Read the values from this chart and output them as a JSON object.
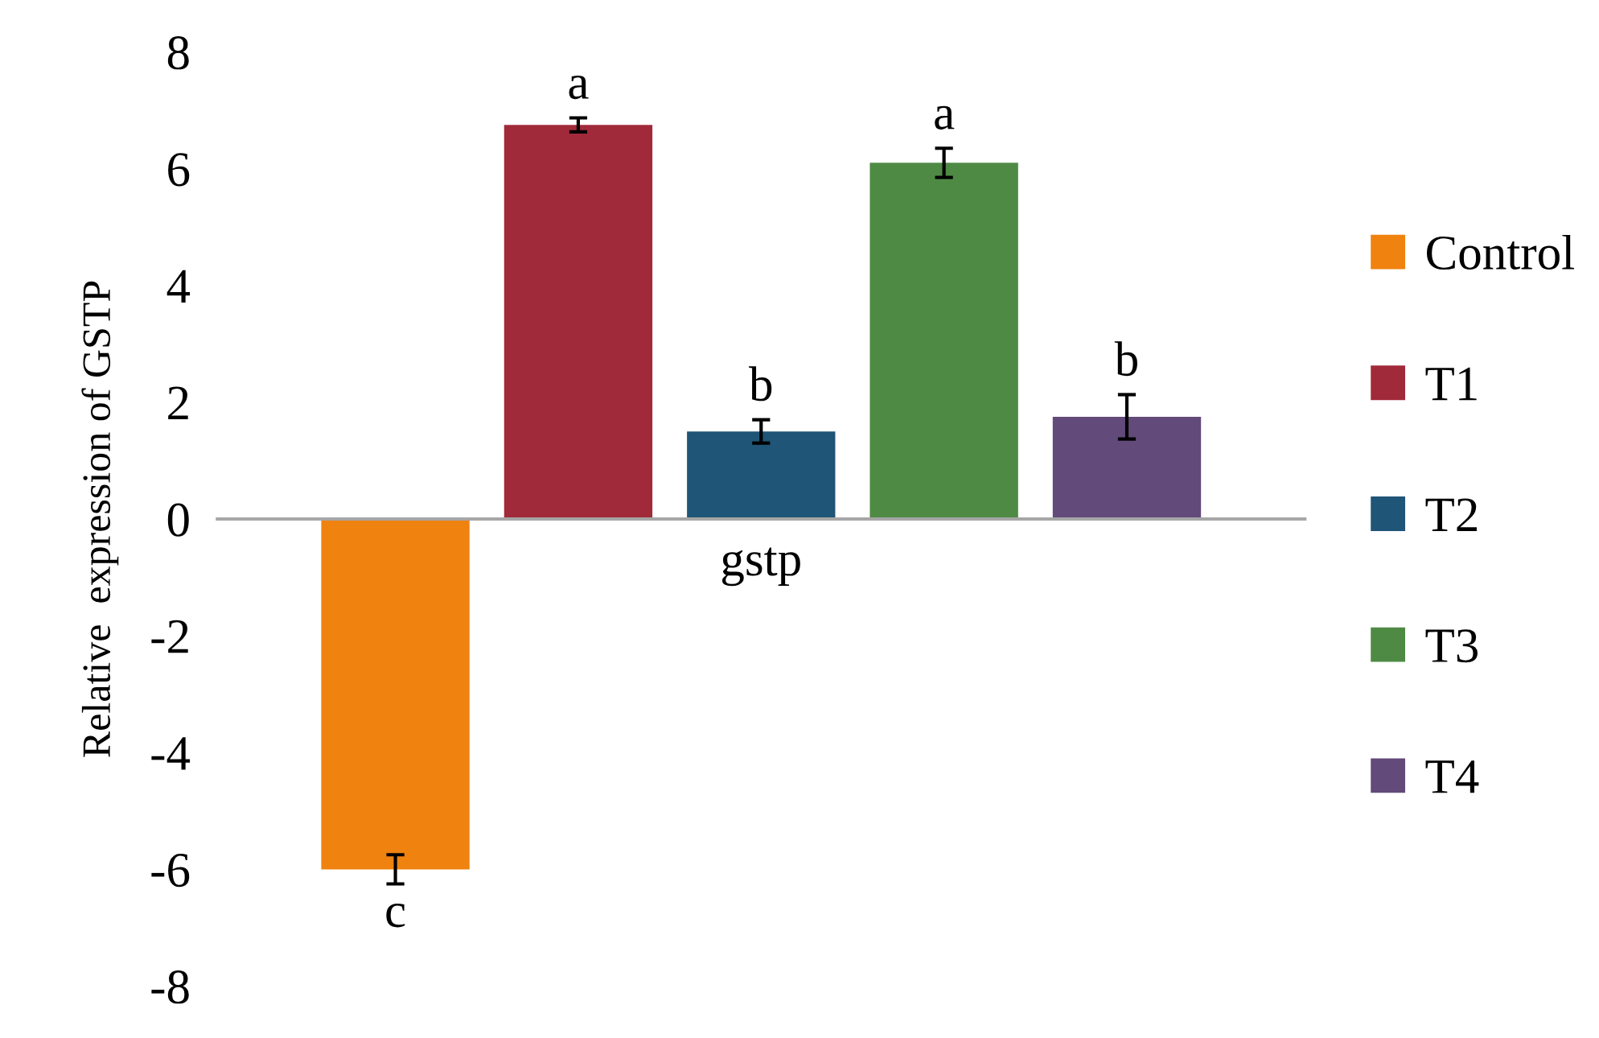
{
  "chart_data": {
    "type": "bar",
    "ylabel": "Relative  expression of GSTP",
    "categories": [
      "gstp"
    ],
    "series": [
      {
        "name": "Control",
        "color": "#f0820f",
        "values": [
          -6.0
        ],
        "errors": [
          0.25
        ],
        "value_labels": [
          "c"
        ]
      },
      {
        "name": "T1",
        "color": "#a12a3a",
        "values": [
          6.75
        ],
        "errors": [
          0.12
        ],
        "value_labels": [
          "a"
        ]
      },
      {
        "name": "T2",
        "color": "#1f5577",
        "values": [
          1.5
        ],
        "errors": [
          0.2
        ],
        "value_labels": [
          "b"
        ]
      },
      {
        "name": "T3",
        "color": "#4e8a44",
        "values": [
          6.1
        ],
        "errors": [
          0.25
        ],
        "value_labels": [
          "a"
        ]
      },
      {
        "name": "T4",
        "color": "#624a7a",
        "values": [
          1.75
        ],
        "errors": [
          0.38
        ],
        "value_labels": [
          "b"
        ]
      }
    ],
    "ylim": [
      -8,
      8
    ],
    "yticks": [
      -8,
      -6,
      -4,
      -2,
      0,
      2,
      4,
      6,
      8
    ],
    "legend": "right"
  }
}
